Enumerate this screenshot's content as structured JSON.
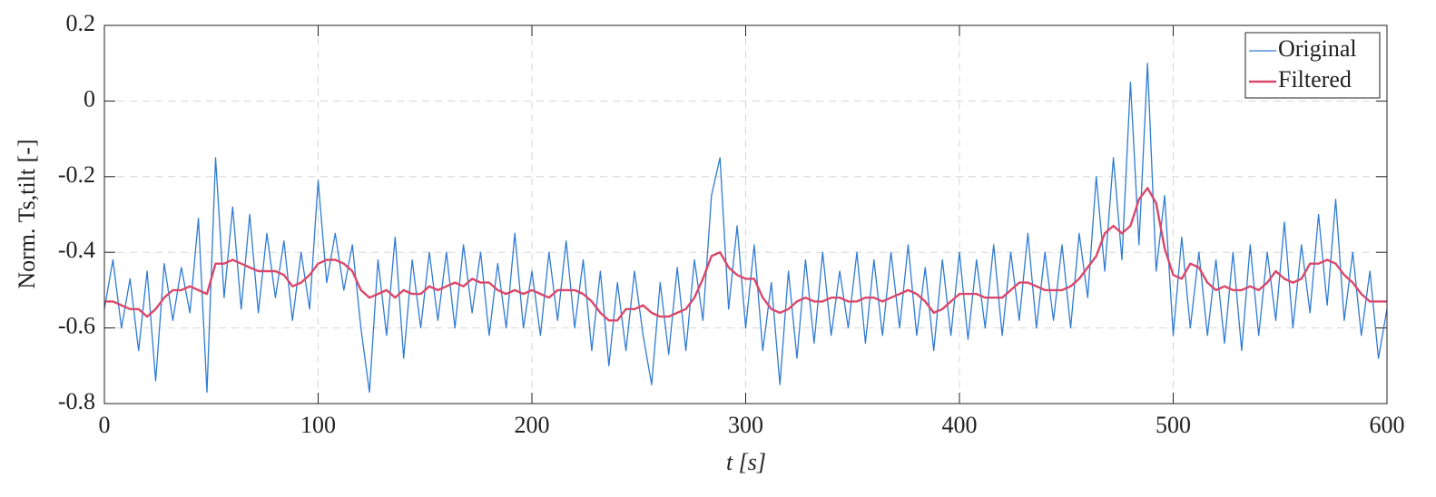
{
  "chart_data": {
    "type": "line",
    "xlabel": "t [s]",
    "ylabel": "Norm. Ts,tilt [-]",
    "x": [
      0,
      4,
      8,
      12,
      16,
      20,
      24,
      28,
      32,
      36,
      40,
      44,
      48,
      52,
      56,
      60,
      64,
      68,
      72,
      76,
      80,
      84,
      88,
      92,
      96,
      100,
      104,
      108,
      112,
      116,
      120,
      124,
      128,
      132,
      136,
      140,
      144,
      148,
      152,
      156,
      160,
      164,
      168,
      172,
      176,
      180,
      184,
      188,
      192,
      196,
      200,
      204,
      208,
      212,
      216,
      220,
      224,
      228,
      232,
      236,
      240,
      244,
      248,
      252,
      256,
      260,
      264,
      268,
      272,
      276,
      280,
      284,
      288,
      292,
      296,
      300,
      304,
      308,
      312,
      316,
      320,
      324,
      328,
      332,
      336,
      340,
      344,
      348,
      352,
      356,
      360,
      364,
      368,
      372,
      376,
      380,
      384,
      388,
      392,
      396,
      400,
      404,
      408,
      412,
      416,
      420,
      424,
      428,
      432,
      436,
      440,
      444,
      448,
      452,
      456,
      460,
      464,
      468,
      472,
      476,
      480,
      484,
      488,
      492,
      496,
      500,
      504,
      508,
      512,
      516,
      520,
      524,
      528,
      532,
      536,
      540,
      544,
      548,
      552,
      556,
      560,
      564,
      568,
      572,
      576,
      580,
      584,
      588,
      592,
      596,
      600
    ],
    "series": [
      {
        "name": "Original",
        "color": "#2f7bd4",
        "values": [
          -0.55,
          -0.42,
          -0.6,
          -0.47,
          -0.66,
          -0.45,
          -0.74,
          -0.43,
          -0.58,
          -0.44,
          -0.56,
          -0.31,
          -0.77,
          -0.15,
          -0.52,
          -0.28,
          -0.55,
          -0.3,
          -0.56,
          -0.35,
          -0.52,
          -0.37,
          -0.58,
          -0.4,
          -0.55,
          -0.21,
          -0.48,
          -0.35,
          -0.5,
          -0.38,
          -0.6,
          -0.77,
          -0.42,
          -0.62,
          -0.36,
          -0.68,
          -0.42,
          -0.6,
          -0.4,
          -0.58,
          -0.4,
          -0.6,
          -0.38,
          -0.56,
          -0.4,
          -0.62,
          -0.43,
          -0.6,
          -0.35,
          -0.6,
          -0.45,
          -0.62,
          -0.4,
          -0.58,
          -0.37,
          -0.6,
          -0.42,
          -0.66,
          -0.45,
          -0.7,
          -0.48,
          -0.66,
          -0.45,
          -0.62,
          -0.75,
          -0.48,
          -0.67,
          -0.44,
          -0.66,
          -0.42,
          -0.58,
          -0.25,
          -0.15,
          -0.55,
          -0.33,
          -0.6,
          -0.38,
          -0.66,
          -0.48,
          -0.75,
          -0.45,
          -0.68,
          -0.42,
          -0.64,
          -0.4,
          -0.62,
          -0.45,
          -0.6,
          -0.4,
          -0.64,
          -0.42,
          -0.62,
          -0.4,
          -0.6,
          -0.38,
          -0.62,
          -0.44,
          -0.66,
          -0.42,
          -0.62,
          -0.4,
          -0.63,
          -0.42,
          -0.6,
          -0.38,
          -0.62,
          -0.4,
          -0.58,
          -0.35,
          -0.6,
          -0.4,
          -0.58,
          -0.38,
          -0.6,
          -0.35,
          -0.52,
          -0.2,
          -0.45,
          -0.15,
          -0.42,
          0.05,
          -0.38,
          0.1,
          -0.45,
          -0.25,
          -0.62,
          -0.36,
          -0.6,
          -0.4,
          -0.62,
          -0.42,
          -0.64,
          -0.4,
          -0.66,
          -0.38,
          -0.62,
          -0.4,
          -0.58,
          -0.32,
          -0.6,
          -0.38,
          -0.56,
          -0.3,
          -0.54,
          -0.26,
          -0.58,
          -0.4,
          -0.62,
          -0.45,
          -0.68,
          -0.55
        ]
      },
      {
        "name": "Filtered",
        "color": "#d9486a",
        "values": [
          -0.53,
          -0.53,
          -0.54,
          -0.55,
          -0.55,
          -0.57,
          -0.55,
          -0.52,
          -0.5,
          -0.5,
          -0.49,
          -0.5,
          -0.51,
          -0.43,
          -0.43,
          -0.42,
          -0.43,
          -0.44,
          -0.45,
          -0.45,
          -0.45,
          -0.46,
          -0.49,
          -0.48,
          -0.46,
          -0.43,
          -0.42,
          -0.42,
          -0.43,
          -0.45,
          -0.5,
          -0.52,
          -0.51,
          -0.5,
          -0.52,
          -0.5,
          -0.51,
          -0.51,
          -0.49,
          -0.5,
          -0.49,
          -0.48,
          -0.49,
          -0.47,
          -0.48,
          -0.48,
          -0.5,
          -0.51,
          -0.5,
          -0.51,
          -0.5,
          -0.51,
          -0.52,
          -0.5,
          -0.5,
          -0.5,
          -0.51,
          -0.53,
          -0.56,
          -0.58,
          -0.58,
          -0.55,
          -0.55,
          -0.54,
          -0.56,
          -0.57,
          -0.57,
          -0.56,
          -0.55,
          -0.52,
          -0.47,
          -0.41,
          -0.4,
          -0.44,
          -0.46,
          -0.47,
          -0.47,
          -0.52,
          -0.55,
          -0.56,
          -0.55,
          -0.53,
          -0.52,
          -0.53,
          -0.53,
          -0.52,
          -0.52,
          -0.53,
          -0.53,
          -0.52,
          -0.52,
          -0.53,
          -0.52,
          -0.51,
          -0.5,
          -0.51,
          -0.53,
          -0.56,
          -0.55,
          -0.53,
          -0.51,
          -0.51,
          -0.51,
          -0.52,
          -0.52,
          -0.52,
          -0.5,
          -0.48,
          -0.48,
          -0.49,
          -0.5,
          -0.5,
          -0.5,
          -0.49,
          -0.47,
          -0.44,
          -0.41,
          -0.35,
          -0.33,
          -0.35,
          -0.33,
          -0.26,
          -0.23,
          -0.27,
          -0.39,
          -0.46,
          -0.47,
          -0.43,
          -0.44,
          -0.48,
          -0.5,
          -0.49,
          -0.5,
          -0.5,
          -0.49,
          -0.5,
          -0.48,
          -0.45,
          -0.47,
          -0.48,
          -0.47,
          -0.43,
          -0.43,
          -0.42,
          -0.43,
          -0.46,
          -0.48,
          -0.51,
          -0.53,
          -0.53,
          -0.53
        ]
      }
    ],
    "xlim": [
      0,
      600
    ],
    "xticks": [
      0,
      100,
      200,
      300,
      400,
      500,
      600
    ],
    "ylim": [
      -0.8,
      0.2
    ],
    "yticks": [
      -0.8,
      -0.6,
      -0.4,
      -0.2,
      0,
      0.2
    ],
    "grid": true,
    "legend": "top-right"
  }
}
